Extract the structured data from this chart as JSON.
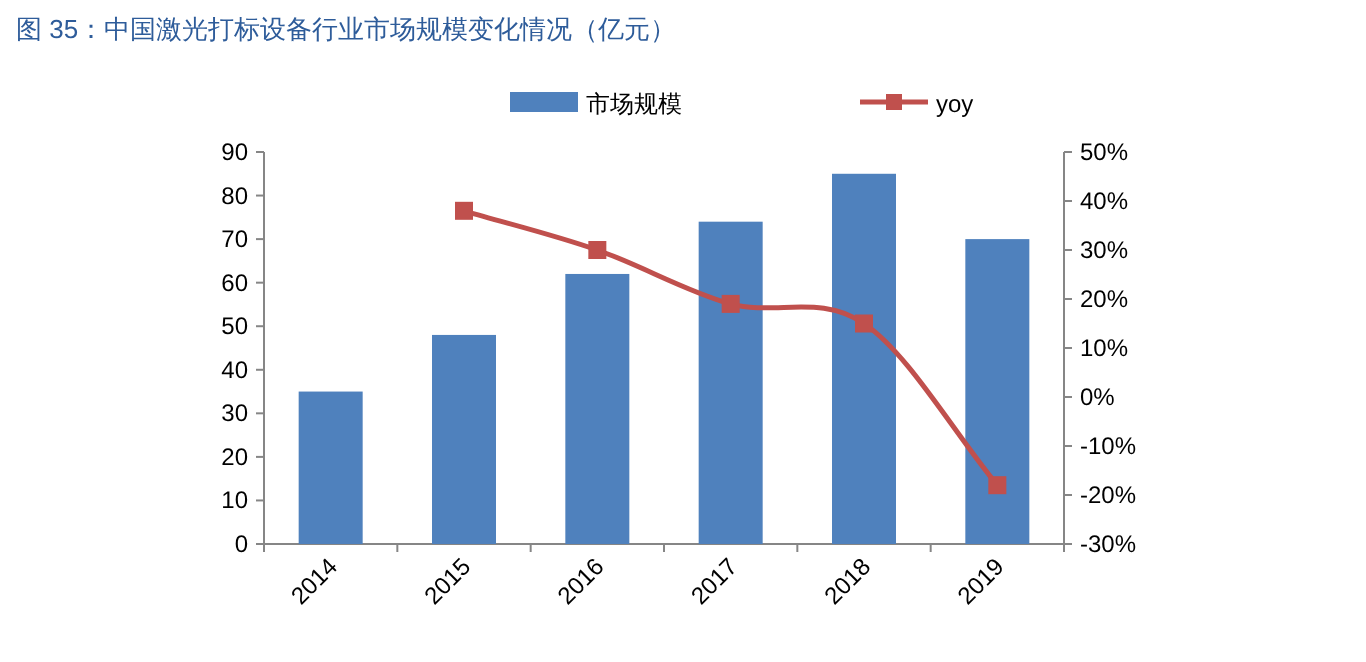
{
  "chart_data": {
    "type": "bar",
    "title": "图 35：中国激光打标设备行业市场规模变化情况（亿元）",
    "categories": [
      "2014",
      "2015",
      "2016",
      "2017",
      "2018",
      "2019"
    ],
    "series": [
      {
        "name": "市场规模",
        "color": "#4f81bd",
        "values": [
          35,
          48,
          62,
          74,
          85,
          70
        ]
      },
      {
        "name": "yoy",
        "type": "line",
        "axis": "y2",
        "color": "#c0504d",
        "marker": "square",
        "values": [
          null,
          38,
          30,
          19,
          15,
          -18
        ]
      }
    ],
    "ylim": [
      0,
      90
    ],
    "yticks": [
      0,
      10,
      20,
      30,
      40,
      50,
      60,
      70,
      80,
      90
    ],
    "y2lim": [
      -30,
      50
    ],
    "y2ticks": [
      {
        "value": -30,
        "label": "-30%"
      },
      {
        "value": -20,
        "label": "-20%"
      },
      {
        "value": -10,
        "label": "-10%"
      },
      {
        "value": 0,
        "label": "0%"
      },
      {
        "value": 10,
        "label": "10%"
      },
      {
        "value": 20,
        "label": "20%"
      },
      {
        "value": 30,
        "label": "30%"
      },
      {
        "value": 40,
        "label": "40%"
      },
      {
        "value": 50,
        "label": "50%"
      }
    ],
    "legend": "top"
  }
}
